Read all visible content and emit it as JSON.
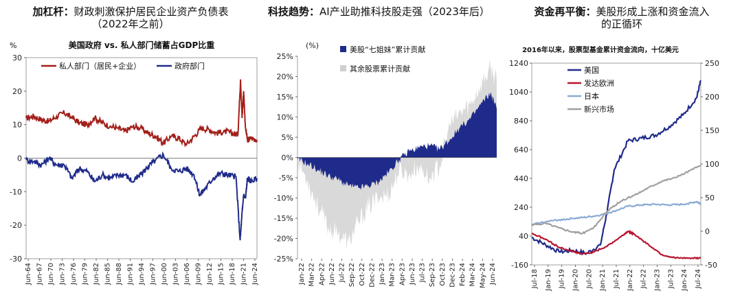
{
  "panels": [
    {
      "title_bold": "加杠杆：",
      "title_line1": "财政刺激保护居民企业资产负债表",
      "title_line2": "（2022年之前）",
      "chart_title": "美国政府 vs. 私人部门储蓄占GDP比重",
      "unit_label": "%"
    },
    {
      "title_bold": "科技趋势：",
      "title_line1": "AI产业助推科技股走强（2023年后）",
      "unit_label": "(%)"
    },
    {
      "title_bold": "资金再平衡：",
      "title_line1": "美股形成上涨和资金流入",
      "title_line2": "的正循环",
      "chart_title": "2016年以来，股票型基金累计资金流向，十亿美元"
    }
  ],
  "chart_data": [
    {
      "type": "line",
      "y_ticks": [
        30,
        20,
        10,
        0,
        -10,
        -20,
        -30
      ],
      "ylim": [
        -30,
        30
      ],
      "x_ticks": [
        "Jun-64",
        "Jun-67",
        "Jun-70",
        "Jun-73",
        "Jun-76",
        "Jun-79",
        "Jun-82",
        "Jun-85",
        "Jun-88",
        "Jun-91",
        "Jun-94",
        "Jun-97",
        "Jun-00",
        "Jun-03",
        "Jun-06",
        "Jun-09",
        "Jun-12",
        "Jun-15",
        "Jun-18",
        "Jun-21",
        "Jun-24"
      ],
      "series": [
        {
          "name": "私人部门（居民+企业）",
          "color": "#a31f1a",
          "x": [
            1964,
            1966,
            1968,
            1970,
            1972,
            1974,
            1976,
            1978,
            1980,
            1982,
            1984,
            1986,
            1988,
            1990,
            1992,
            1994,
            1996,
            1998,
            2000,
            2002,
            2004,
            2006,
            2008,
            2010,
            2012,
            2014,
            2016,
            2018,
            2019.5,
            2020.2,
            2020.6,
            2021,
            2021.5,
            2022,
            2023,
            2024.5
          ],
          "y": [
            12,
            12.5,
            11.5,
            11,
            12.5,
            13.5,
            12,
            10.5,
            10,
            12,
            10.5,
            9.5,
            9,
            8,
            9.5,
            9,
            7.5,
            6.5,
            4.5,
            6.5,
            6,
            4,
            6.5,
            9,
            8.5,
            7.5,
            8,
            7.5,
            7,
            23.5,
            12,
            20,
            9,
            5.5,
            6,
            5.5
          ]
        },
        {
          "name": "政府部门",
          "color": "#1f2b8a",
          "x": [
            1964,
            1966,
            1968,
            1970,
            1972,
            1974,
            1976,
            1978,
            1980,
            1982,
            1984,
            1986,
            1988,
            1990,
            1992,
            1994,
            1996,
            1998,
            2000,
            2002,
            2004,
            2006,
            2008,
            2009.5,
            2011,
            2013,
            2015,
            2017,
            2019,
            2020.1,
            2020.5,
            2021,
            2021.5,
            2022,
            2023,
            2024.5
          ],
          "y": [
            -0.5,
            -1,
            -2,
            0,
            -2,
            -2,
            -6,
            -3,
            -4,
            -7,
            -5,
            -6,
            -5,
            -5,
            -7,
            -5,
            -2.5,
            -0.5,
            1,
            -3,
            -4,
            -3,
            -5,
            -11,
            -9,
            -6,
            -4.5,
            -5,
            -5.5,
            -24.5,
            -18,
            -11,
            -12,
            -6,
            -7,
            -6
          ]
        }
      ]
    },
    {
      "type": "area",
      "y_ticks": [
        "25%",
        "20%",
        "15%",
        "10%",
        "5%",
        "0%",
        "-5%",
        "-10%",
        "-15%",
        "-20%",
        "-25%"
      ],
      "ylim": [
        -25,
        25
      ],
      "x_ticks": [
        "Jan-22",
        "Mar-22",
        "Apr-22",
        "Jun-22",
        "Jul-22",
        "Sep-22",
        "Oct-22",
        "Dec-22",
        "Jan-23",
        "Mar-23",
        "Apr-23",
        "Jun-23",
        "Jul-23",
        "Sep-23",
        "Oct-23",
        "Dec-23",
        "Feb-24",
        "Mar-24",
        "May-24",
        "Jun-24"
      ],
      "series": [
        {
          "name": "美股“七姐妹”累计贡献",
          "color": "#1f2b8a",
          "x": [
            0,
            1,
            2,
            3,
            4,
            5,
            6,
            7,
            8,
            9,
            10,
            11,
            12,
            13,
            14,
            15,
            16,
            17,
            18,
            19,
            19.6
          ],
          "y": [
            -0.5,
            -1.5,
            -3,
            -4.5,
            -5.5,
            -7,
            -7.5,
            -7,
            -6,
            -3.5,
            -0.5,
            1.5,
            2.5,
            3,
            2,
            4.5,
            7.5,
            9.5,
            13,
            16,
            12
          ]
        },
        {
          "name": "其余股票累计贡献",
          "color": "#d9d9d9",
          "x": [
            0,
            1,
            2,
            3,
            4,
            5,
            6,
            7,
            8,
            9,
            10,
            11,
            12,
            13,
            14,
            15,
            16,
            17,
            18,
            19,
            19.6
          ],
          "y": [
            -0.5,
            -6,
            -12,
            -17,
            -19,
            -21,
            -16,
            -12,
            -10,
            -9,
            -3,
            -4,
            -2,
            -5,
            -2,
            8,
            11,
            13,
            18,
            22,
            19
          ]
        }
      ]
    },
    {
      "type": "line",
      "y_ticks_left": [
        1240,
        1040,
        840,
        640,
        440,
        240,
        40,
        -160
      ],
      "ylim_left": [
        -160,
        1240
      ],
      "y_ticks_right": [
        250,
        200,
        150,
        100,
        50,
        0,
        -50
      ],
      "ylim_right": [
        -50,
        250
      ],
      "x_ticks": [
        "Jul-18",
        "Jan-19",
        "Jul-19",
        "Jan-20",
        "Jul-20",
        "Jan-21",
        "Jul-21",
        "Jan-22",
        "Jul-22",
        "Jan-23",
        "Jul-23",
        "Jan-24",
        "Jul-24"
      ],
      "series": [
        {
          "name": "美国",
          "color": "#1f2b8a",
          "axis": "left",
          "x": [
            0,
            1,
            2,
            3,
            4,
            5,
            5.5,
            6,
            7,
            8,
            9,
            10,
            11,
            12,
            12.3
          ],
          "y": [
            30,
            -20,
            -70,
            -60,
            -80,
            -20,
            220,
            500,
            700,
            720,
            740,
            800,
            880,
            1000,
            1120
          ]
        },
        {
          "name": "发达欧洲",
          "color": "#b8142e",
          "axis": "right",
          "x": [
            0,
            1,
            2,
            3,
            3.7,
            4.5,
            5.5,
            6.5,
            7,
            7.5,
            8.5,
            9.5,
            10.5,
            11.5,
            12.3
          ],
          "y": [
            -3,
            -12,
            -24,
            -30,
            -34,
            -31,
            -22,
            -8,
            0,
            -5,
            -20,
            -35,
            -40,
            -40,
            -40
          ]
        },
        {
          "name": "日本",
          "color": "#8aaad5",
          "axis": "right",
          "x": [
            0,
            1,
            2,
            3,
            4,
            5,
            6,
            7,
            8,
            9,
            10,
            11,
            12,
            12.3
          ],
          "y": [
            10,
            14,
            17,
            19,
            21,
            24,
            30,
            37,
            39,
            40,
            39,
            40,
            44,
            41
          ]
        },
        {
          "name": "新兴市场",
          "color": "#a0a0a0",
          "axis": "right",
          "x": [
            0,
            1,
            2,
            3,
            3.7,
            4.5,
            5.5,
            6.5,
            7.5,
            8.5,
            9.5,
            10.5,
            11.5,
            12.3
          ],
          "y": [
            9,
            12,
            5,
            -1,
            -3,
            5,
            30,
            45,
            54,
            65,
            75,
            80,
            90,
            98
          ]
        }
      ]
    }
  ]
}
